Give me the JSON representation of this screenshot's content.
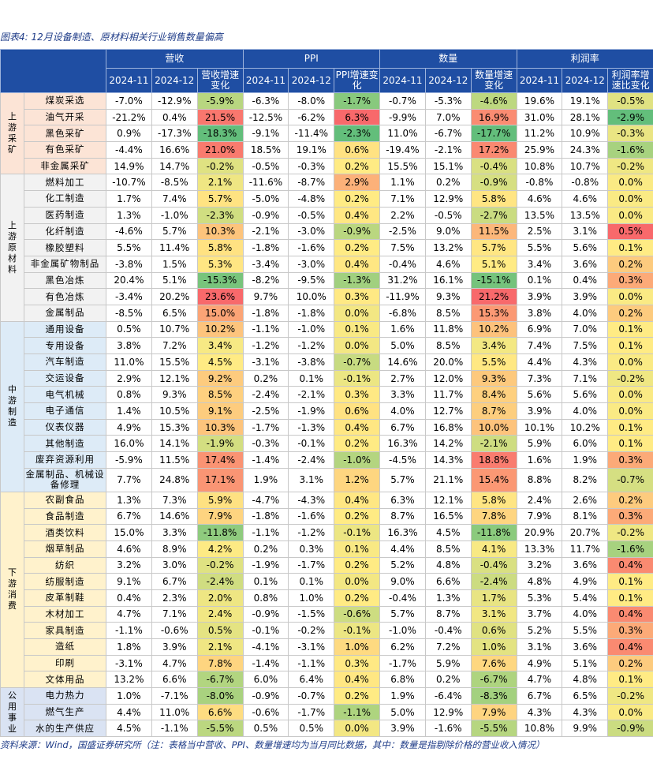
{
  "title": "图表4: 12月设备制造、原材料相关行业销售数量偏高",
  "groups": [
    {
      "name": "营收",
      "columns": [
        "2024-11",
        "2024-12",
        "营收增速变化"
      ]
    },
    {
      "name": "PPI",
      "columns": [
        "2024-11",
        "2024-12",
        "PPI增速变化"
      ]
    },
    {
      "name": "数量",
      "columns": [
        "2024-11",
        "2024-12",
        "数量增速变化"
      ]
    },
    {
      "name": "利润率",
      "columns": [
        "2024-11",
        "2024-12",
        "利润率增速比变化"
      ]
    }
  ],
  "sections": [
    {
      "name": "上游采矿",
      "rows": [
        {
          "name": "煤炭采选",
          "values": [
            "-7.0%",
            "-12.9%",
            "-5.9%",
            "-6.3%",
            "-8.0%",
            "-1.7%",
            "-0.7%",
            "-5.3%",
            "-4.6%",
            "19.6%",
            "19.1%",
            "-0.5%"
          ]
        },
        {
          "name": "油气开采",
          "values": [
            "-21.2%",
            "0.4%",
            "21.5%",
            "-12.5%",
            "-6.2%",
            "6.3%",
            "-9.9%",
            "7.0%",
            "16.9%",
            "31.0%",
            "28.1%",
            "-2.9%"
          ]
        },
        {
          "name": "黑色采矿",
          "values": [
            "0.9%",
            "-17.3%",
            "-18.3%",
            "-9.1%",
            "-11.4%",
            "-2.3%",
            "11.0%",
            "-6.7%",
            "-17.7%",
            "11.2%",
            "10.9%",
            "-0.3%"
          ]
        },
        {
          "name": "有色采矿",
          "values": [
            "-4.4%",
            "16.6%",
            "21.0%",
            "18.5%",
            "19.1%",
            "0.6%",
            "-19.4%",
            "-2.1%",
            "17.2%",
            "25.9%",
            "24.3%",
            "-1.6%"
          ]
        },
        {
          "name": "非金属采矿",
          "values": [
            "14.9%",
            "14.7%",
            "-0.2%",
            "-0.5%",
            "-0.3%",
            "0.2%",
            "15.5%",
            "15.1%",
            "-0.4%",
            "10.8%",
            "10.7%",
            "-0.2%"
          ]
        }
      ]
    },
    {
      "name": "上游原材料",
      "rows": [
        {
          "name": "燃料加工",
          "values": [
            "-10.7%",
            "-8.5%",
            "2.1%",
            "-11.6%",
            "-8.7%",
            "2.9%",
            "1.1%",
            "0.2%",
            "-0.9%",
            "-0.8%",
            "-0.8%",
            "0.0%"
          ]
        },
        {
          "name": "化工制造",
          "values": [
            "1.7%",
            "7.4%",
            "5.7%",
            "-5.0%",
            "-4.8%",
            "0.2%",
            "7.1%",
            "12.9%",
            "5.8%",
            "4.6%",
            "4.6%",
            "0.0%"
          ]
        },
        {
          "name": "医药制造",
          "values": [
            "1.3%",
            "-1.0%",
            "-2.3%",
            "-0.9%",
            "-0.5%",
            "0.4%",
            "2.2%",
            "-0.5%",
            "-2.7%",
            "13.5%",
            "13.5%",
            "0.0%"
          ]
        },
        {
          "name": "化纤制造",
          "values": [
            "-4.6%",
            "5.7%",
            "10.3%",
            "-2.1%",
            "-3.0%",
            "-0.9%",
            "-2.5%",
            "9.0%",
            "11.5%",
            "2.5%",
            "3.1%",
            "0.5%"
          ]
        },
        {
          "name": "橡胶塑料",
          "values": [
            "5.5%",
            "11.4%",
            "5.8%",
            "-1.8%",
            "-1.6%",
            "0.2%",
            "7.5%",
            "13.2%",
            "5.7%",
            "5.5%",
            "5.6%",
            "0.1%"
          ]
        },
        {
          "name": "非金属矿物制品",
          "values": [
            "-3.8%",
            "1.5%",
            "5.3%",
            "-3.4%",
            "-3.0%",
            "0.4%",
            "-0.4%",
            "4.6%",
            "5.1%",
            "3.4%",
            "3.6%",
            "0.2%"
          ]
        },
        {
          "name": "黑色冶炼",
          "values": [
            "20.4%",
            "5.1%",
            "-15.3%",
            "-8.2%",
            "-9.5%",
            "-1.3%",
            "31.2%",
            "16.1%",
            "-15.1%",
            "0.1%",
            "0.4%",
            "0.3%"
          ]
        },
        {
          "name": "有色冶炼",
          "values": [
            "-3.4%",
            "20.2%",
            "23.6%",
            "9.7%",
            "10.0%",
            "0.3%",
            "-11.9%",
            "9.3%",
            "21.2%",
            "3.9%",
            "3.9%",
            "0.0%"
          ]
        },
        {
          "name": "金属制品",
          "values": [
            "-8.5%",
            "6.5%",
            "15.0%",
            "-1.8%",
            "-1.8%",
            "0.0%",
            "-6.8%",
            "8.5%",
            "15.3%",
            "3.8%",
            "4.0%",
            "0.2%"
          ]
        }
      ]
    },
    {
      "name": "中游制造",
      "rows": [
        {
          "name": "通用设备",
          "values": [
            "0.5%",
            "10.7%",
            "10.2%",
            "-1.1%",
            "-1.0%",
            "0.1%",
            "1.6%",
            "11.8%",
            "10.2%",
            "6.9%",
            "7.0%",
            "0.1%"
          ]
        },
        {
          "name": "专用设备",
          "values": [
            "3.8%",
            "7.2%",
            "3.4%",
            "-1.2%",
            "-1.2%",
            "0.0%",
            "5.0%",
            "8.5%",
            "3.4%",
            "7.4%",
            "7.5%",
            "0.1%"
          ]
        },
        {
          "name": "汽车制造",
          "values": [
            "11.0%",
            "15.5%",
            "4.5%",
            "-3.1%",
            "-3.8%",
            "-0.7%",
            "14.6%",
            "20.0%",
            "5.5%",
            "4.4%",
            "4.3%",
            "0.0%"
          ]
        },
        {
          "name": "交运设备",
          "values": [
            "2.9%",
            "12.1%",
            "9.2%",
            "0.2%",
            "0.1%",
            "-0.1%",
            "2.7%",
            "12.0%",
            "9.3%",
            "7.3%",
            "7.1%",
            "-0.2%"
          ]
        },
        {
          "name": "电气机械",
          "values": [
            "0.8%",
            "9.3%",
            "8.5%",
            "-2.4%",
            "-2.1%",
            "0.3%",
            "3.3%",
            "11.7%",
            "8.4%",
            "5.6%",
            "5.6%",
            "0.0%"
          ]
        },
        {
          "name": "电子通信",
          "values": [
            "1.4%",
            "10.5%",
            "9.1%",
            "-2.5%",
            "-1.9%",
            "0.6%",
            "4.0%",
            "12.7%",
            "8.7%",
            "3.9%",
            "4.0%",
            "0.0%"
          ]
        },
        {
          "name": "仪表仪器",
          "values": [
            "4.9%",
            "15.3%",
            "10.3%",
            "-1.7%",
            "-1.3%",
            "0.4%",
            "6.7%",
            "16.8%",
            "10.0%",
            "10.1%",
            "10.2%",
            "0.1%"
          ]
        },
        {
          "name": "其他制造",
          "values": [
            "16.0%",
            "14.1%",
            "-1.9%",
            "-0.3%",
            "-0.1%",
            "0.2%",
            "16.3%",
            "14.2%",
            "-2.1%",
            "5.9%",
            "6.0%",
            "0.1%"
          ]
        },
        {
          "name": "废弃资源利用",
          "values": [
            "-5.9%",
            "11.5%",
            "17.4%",
            "-1.4%",
            "-2.4%",
            "-1.0%",
            "-4.5%",
            "14.3%",
            "18.8%",
            "1.6%",
            "1.9%",
            "0.3%"
          ]
        },
        {
          "name": "金属制品、机械设备修理",
          "values": [
            "7.7%",
            "24.8%",
            "17.1%",
            "1.9%",
            "3.1%",
            "1.2%",
            "5.7%",
            "21.1%",
            "15.4%",
            "8.8%",
            "8.2%",
            "-0.7%"
          ]
        }
      ]
    },
    {
      "name": "下游消费",
      "rows": [
        {
          "name": "农副食品",
          "values": [
            "1.3%",
            "7.3%",
            "5.9%",
            "-4.7%",
            "-4.3%",
            "0.4%",
            "6.3%",
            "12.1%",
            "5.8%",
            "2.4%",
            "2.6%",
            "0.2%"
          ]
        },
        {
          "name": "食品制造",
          "values": [
            "6.7%",
            "14.6%",
            "7.9%",
            "-1.8%",
            "-1.6%",
            "0.2%",
            "8.7%",
            "16.5%",
            "7.8%",
            "7.9%",
            "8.1%",
            "0.3%"
          ]
        },
        {
          "name": "酒类饮料",
          "values": [
            "15.0%",
            "3.3%",
            "-11.8%",
            "-1.1%",
            "-1.2%",
            "-0.1%",
            "16.3%",
            "4.5%",
            "-11.8%",
            "20.9%",
            "20.7%",
            "-0.2%"
          ]
        },
        {
          "name": "烟草制品",
          "values": [
            "4.6%",
            "8.9%",
            "4.2%",
            "0.2%",
            "0.3%",
            "0.1%",
            "4.4%",
            "8.5%",
            "4.1%",
            "13.3%",
            "11.7%",
            "-1.6%"
          ]
        },
        {
          "name": "纺织",
          "values": [
            "3.2%",
            "3.0%",
            "-0.2%",
            "-1.9%",
            "-1.7%",
            "0.2%",
            "5.2%",
            "4.8%",
            "-0.4%",
            "3.2%",
            "3.6%",
            "0.4%"
          ]
        },
        {
          "name": "纺服制造",
          "values": [
            "9.1%",
            "6.7%",
            "-2.4%",
            "0.1%",
            "0.1%",
            "0.0%",
            "9.0%",
            "6.6%",
            "-2.4%",
            "4.8%",
            "4.9%",
            "0.1%"
          ]
        },
        {
          "name": "皮革制鞋",
          "values": [
            "0.4%",
            "2.3%",
            "2.0%",
            "0.8%",
            "1.0%",
            "0.2%",
            "-0.4%",
            "1.3%",
            "1.7%",
            "5.3%",
            "5.4%",
            "0.1%"
          ]
        },
        {
          "name": "木材加工",
          "values": [
            "4.7%",
            "7.1%",
            "2.4%",
            "-0.9%",
            "-1.5%",
            "-0.6%",
            "5.7%",
            "8.7%",
            "3.1%",
            "3.7%",
            "4.0%",
            "0.4%"
          ]
        },
        {
          "name": "家具制造",
          "values": [
            "-1.1%",
            "-0.6%",
            "0.5%",
            "-0.1%",
            "-0.2%",
            "-0.1%",
            "-1.0%",
            "-0.4%",
            "0.6%",
            "5.2%",
            "5.5%",
            "0.3%"
          ]
        },
        {
          "name": "造纸",
          "values": [
            "1.8%",
            "3.9%",
            "2.1%",
            "-4.1%",
            "-3.1%",
            "1.0%",
            "6.2%",
            "7.2%",
            "1.0%",
            "3.1%",
            "3.6%",
            "0.4%"
          ]
        },
        {
          "name": "印刷",
          "values": [
            "-3.1%",
            "4.7%",
            "7.8%",
            "-1.4%",
            "-1.1%",
            "0.3%",
            "-1.7%",
            "5.9%",
            "7.6%",
            "4.9%",
            "5.1%",
            "0.2%"
          ]
        },
        {
          "name": "文体用品",
          "values": [
            "13.2%",
            "6.6%",
            "-6.7%",
            "6.0%",
            "6.4%",
            "0.4%",
            "6.8%",
            "0.2%",
            "-6.7%",
            "4.7%",
            "4.8%",
            "0.1%"
          ]
        }
      ]
    },
    {
      "name": "公用事业",
      "rows": [
        {
          "name": "电力热力",
          "values": [
            "1.0%",
            "-7.1%",
            "-8.0%",
            "-0.9%",
            "-0.7%",
            "0.2%",
            "1.9%",
            "-6.4%",
            "-8.3%",
            "6.7%",
            "6.5%",
            "-0.2%"
          ]
        },
        {
          "name": "燃气生产",
          "values": [
            "4.4%",
            "11.0%",
            "6.6%",
            "-0.6%",
            "-1.7%",
            "-1.1%",
            "5.0%",
            "12.9%",
            "7.9%",
            "4.3%",
            "4.3%",
            "0.0%"
          ]
        },
        {
          "name": "水的生产供应",
          "values": [
            "4.5%",
            "-1.1%",
            "-5.5%",
            "0.5%",
            "0.5%",
            "0.0%",
            "3.9%",
            "-1.6%",
            "-5.5%",
            "10.8%",
            "9.9%",
            "-0.9%"
          ]
        }
      ]
    }
  ],
  "source": "资料来源：Wind，国盛证券研究所（注：表格当中营收、PPI、数量增速均为当月同比数据，其中：数量是指剔除价格的营业收入情况）"
}
